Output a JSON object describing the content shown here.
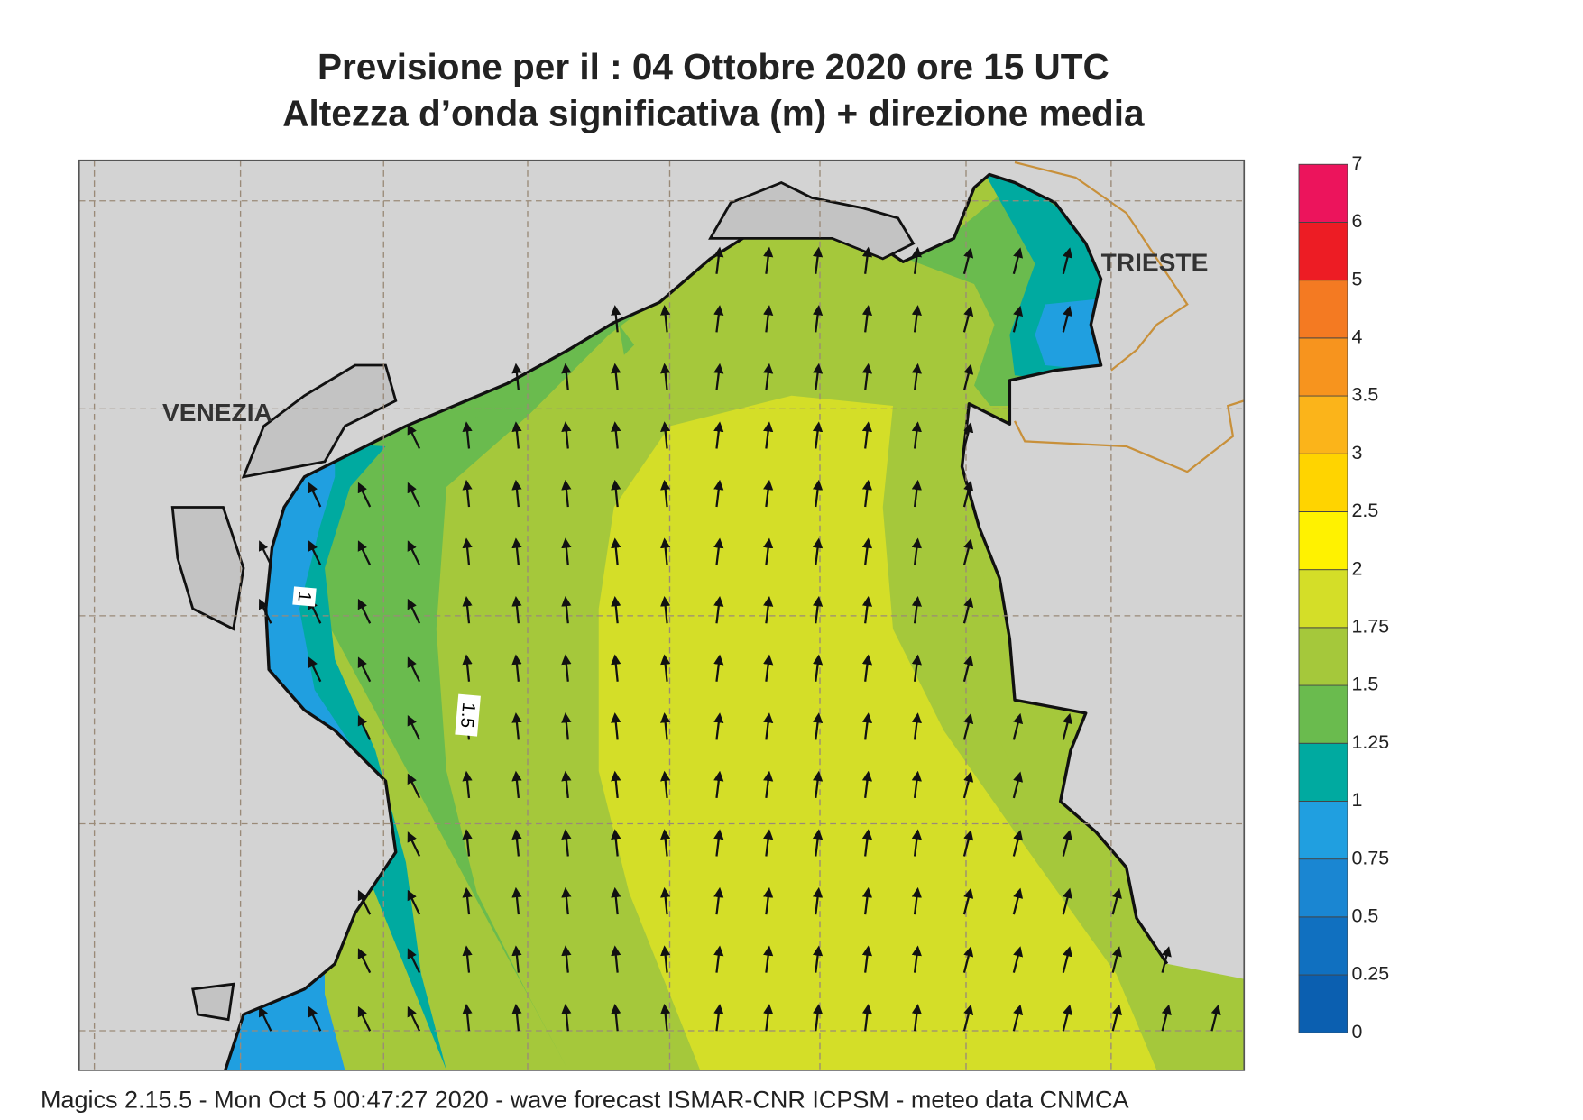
{
  "title": [
    "Previsione per il  :  04  Ottobre  2020   ore 15 UTC",
    "Altezza d’onda significativa (m) + direzione media"
  ],
  "places": [
    "VENEZIA",
    "TRIESTE"
  ],
  "contour_labels": [
    "1",
    "1.5"
  ],
  "colorbar": {
    "levels": [
      0,
      0.25,
      0.5,
      0.75,
      1,
      1.25,
      1.5,
      1.75,
      2,
      2.5,
      3,
      3.5,
      4,
      5,
      6,
      7
    ],
    "colors": [
      "#0b5fb0",
      "#1070c0",
      "#1a86d2",
      "#209fe0",
      "#00aaa0",
      "#6abb4e",
      "#a5c83b",
      "#d4de28",
      "#fff200",
      "#ffd400",
      "#fbb41a",
      "#f7941e",
      "#f47a22",
      "#ed1c24",
      "#ec145c"
    ]
  },
  "footer": "Magics 2.15.5 - Mon Oct  5 00:47:27 2020 - wave forecast  ISMAR-CNR  ICPSM - meteo data   CNMCA"
}
